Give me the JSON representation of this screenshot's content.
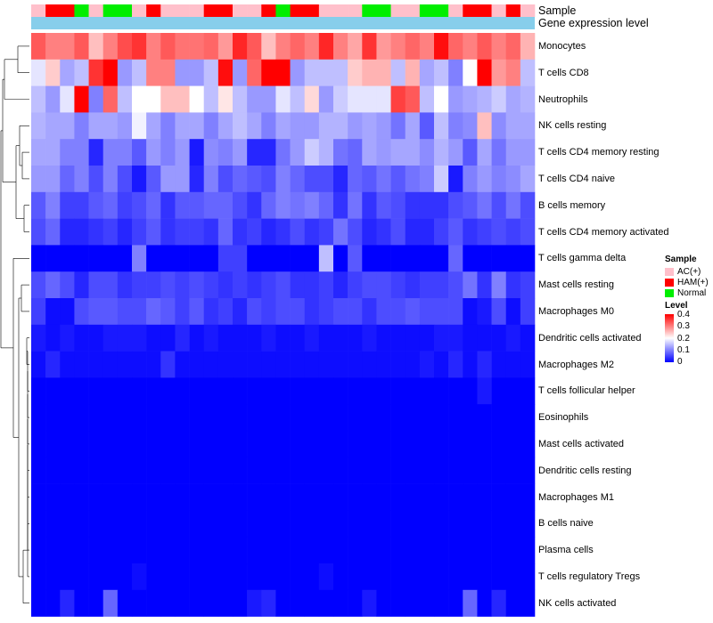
{
  "chart_data": {
    "type": "heatmap",
    "title": "",
    "annotation_tracks": [
      {
        "name": "Sample",
        "label": "Sample"
      },
      {
        "name": "Gene expression level",
        "label": "Gene expression level",
        "color": "#87ceeb"
      }
    ],
    "sample_groups": [
      "AC(+)",
      "HAM(+)",
      "HAM(+)",
      "Normal",
      "AC(+)",
      "Normal",
      "Normal",
      "AC(+)",
      "HAM(+)",
      "AC(+)",
      "AC(+)",
      "AC(+)",
      "HAM(+)",
      "HAM(+)",
      "AC(+)",
      "AC(+)",
      "HAM(+)",
      "Normal",
      "HAM(+)",
      "HAM(+)",
      "AC(+)",
      "AC(+)",
      "AC(+)",
      "Normal",
      "Normal",
      "AC(+)",
      "AC(+)",
      "Normal",
      "Normal",
      "AC(+)",
      "HAM(+)",
      "HAM(+)",
      "AC(+)",
      "HAM(+)",
      "AC(+)"
    ],
    "rows": [
      "Monocytes",
      "T cells CD8",
      "Neutrophils",
      "NK cells resting",
      "T cells CD4 memory resting",
      "T cells CD4 naive",
      "B cells memory",
      "T cells CD4 memory activated",
      "T cells gamma delta",
      "Mast cells resting",
      "Macrophages M0",
      "Dendritic cells activated",
      "Macrophages M2",
      "T cells follicular helper",
      "Eosinophils",
      "Mast cells activated",
      "Dendritic cells resting",
      "Macrophages M1",
      "B cells naive",
      "Plasma cells",
      "T cells regulatory  Tregs",
      "NK cells activated"
    ],
    "values": [
      [
        0.33,
        0.3,
        0.3,
        0.33,
        0.25,
        0.3,
        0.34,
        0.36,
        0.3,
        0.33,
        0.31,
        0.31,
        0.32,
        0.28,
        0.37,
        0.33,
        0.25,
        0.3,
        0.32,
        0.3,
        0.37,
        0.3,
        0.27,
        0.36,
        0.28,
        0.3,
        0.32,
        0.3,
        0.39,
        0.32,
        0.3,
        0.33,
        0.3,
        0.32,
        0.26
      ],
      [
        0.18,
        0.24,
        0.13,
        0.15,
        0.36,
        0.4,
        0.12,
        0.15,
        0.3,
        0.3,
        0.12,
        0.12,
        0.15,
        0.39,
        0.12,
        0.32,
        0.44,
        0.44,
        0.12,
        0.15,
        0.15,
        0.15,
        0.24,
        0.26,
        0.26,
        0.15,
        0.26,
        0.13,
        0.15,
        0.1,
        0.2,
        0.4,
        0.28,
        0.3,
        0.15
      ],
      [
        0.15,
        0.12,
        0.18,
        0.4,
        0.1,
        0.32,
        0.15,
        0.2,
        0.2,
        0.25,
        0.25,
        0.2,
        0.15,
        0.22,
        0.15,
        0.12,
        0.12,
        0.18,
        0.15,
        0.23,
        0.12,
        0.16,
        0.18,
        0.18,
        0.18,
        0.35,
        0.33,
        0.15,
        0.2,
        0.12,
        0.13,
        0.14,
        0.16,
        0.13,
        0.14
      ],
      [
        0.14,
        0.13,
        0.13,
        0.1,
        0.13,
        0.13,
        0.12,
        0.19,
        0.13,
        0.1,
        0.13,
        0.13,
        0.1,
        0.13,
        0.15,
        0.13,
        0.1,
        0.13,
        0.12,
        0.12,
        0.14,
        0.14,
        0.12,
        0.13,
        0.12,
        0.09,
        0.13,
        0.07,
        0.15,
        0.1,
        0.11,
        0.25,
        0.11,
        0.13,
        0.13
      ],
      [
        0.13,
        0.13,
        0.1,
        0.1,
        0.03,
        0.1,
        0.1,
        0.07,
        0.12,
        0.1,
        0.12,
        0.02,
        0.11,
        0.1,
        0.12,
        0.03,
        0.03,
        0.09,
        0.12,
        0.16,
        0.14,
        0.09,
        0.08,
        0.13,
        0.12,
        0.13,
        0.13,
        0.11,
        0.14,
        0.12,
        0.07,
        0.13,
        0.09,
        0.12,
        0.12
      ],
      [
        0.12,
        0.12,
        0.08,
        0.1,
        0.06,
        0.1,
        0.06,
        0.02,
        0.07,
        0.12,
        0.12,
        0.03,
        0.1,
        0.06,
        0.08,
        0.07,
        0.06,
        0.1,
        0.08,
        0.06,
        0.06,
        0.03,
        0.08,
        0.07,
        0.09,
        0.07,
        0.09,
        0.1,
        0.16,
        0.02,
        0.1,
        0.12,
        0.1,
        0.11,
        0.13
      ],
      [
        0.07,
        0.1,
        0.05,
        0.05,
        0.07,
        0.08,
        0.05,
        0.06,
        0.08,
        0.04,
        0.07,
        0.07,
        0.08,
        0.08,
        0.06,
        0.04,
        0.08,
        0.1,
        0.09,
        0.1,
        0.08,
        0.04,
        0.09,
        0.04,
        0.07,
        0.06,
        0.04,
        0.04,
        0.04,
        0.06,
        0.07,
        0.09,
        0.06,
        0.09,
        0.06
      ],
      [
        0.06,
        0.08,
        0.03,
        0.03,
        0.04,
        0.05,
        0.03,
        0.05,
        0.07,
        0.04,
        0.05,
        0.05,
        0.04,
        0.08,
        0.04,
        0.05,
        0.03,
        0.04,
        0.06,
        0.04,
        0.05,
        0.09,
        0.06,
        0.03,
        0.04,
        0.06,
        0.03,
        0.03,
        0.05,
        0.07,
        0.04,
        0.05,
        0.06,
        0.05,
        0.06
      ],
      [
        0.0,
        0.0,
        0.0,
        0.0,
        0.0,
        0.0,
        0.0,
        0.1,
        0.0,
        0.0,
        0.0,
        0.0,
        0.0,
        0.05,
        0.05,
        0.0,
        0.0,
        0.0,
        0.0,
        0.0,
        0.15,
        0.0,
        0.07,
        0.0,
        0.0,
        0.0,
        0.0,
        0.0,
        0.0,
        0.08,
        0.0,
        0.0,
        0.0,
        0.0,
        0.0
      ],
      [
        0.06,
        0.08,
        0.06,
        0.03,
        0.06,
        0.06,
        0.04,
        0.05,
        0.05,
        0.06,
        0.05,
        0.06,
        0.05,
        0.04,
        0.05,
        0.04,
        0.05,
        0.06,
        0.04,
        0.04,
        0.05,
        0.03,
        0.05,
        0.06,
        0.06,
        0.05,
        0.04,
        0.05,
        0.05,
        0.06,
        0.09,
        0.04,
        0.1,
        0.04,
        0.05
      ],
      [
        0.05,
        0.01,
        0.01,
        0.06,
        0.07,
        0.07,
        0.06,
        0.06,
        0.08,
        0.07,
        0.05,
        0.07,
        0.04,
        0.05,
        0.03,
        0.06,
        0.05,
        0.06,
        0.06,
        0.04,
        0.05,
        0.06,
        0.06,
        0.04,
        0.06,
        0.06,
        0.07,
        0.06,
        0.06,
        0.06,
        0.01,
        0.02,
        0.06,
        0.01,
        0.05
      ],
      [
        0.02,
        0.01,
        0.02,
        0.01,
        0.01,
        0.02,
        0.02,
        0.02,
        0.01,
        0.01,
        0.03,
        0.01,
        0.02,
        0.01,
        0.01,
        0.01,
        0.02,
        0.01,
        0.01,
        0.02,
        0.01,
        0.01,
        0.01,
        0.02,
        0.01,
        0.01,
        0.01,
        0.01,
        0.02,
        0.02,
        0.01,
        0.01,
        0.01,
        0.02,
        0.01
      ],
      [
        0.01,
        0.03,
        0.01,
        0.01,
        0.01,
        0.01,
        0.01,
        0.01,
        0.01,
        0.04,
        0.01,
        0.01,
        0.01,
        0.01,
        0.01,
        0.01,
        0.01,
        0.01,
        0.01,
        0.01,
        0.01,
        0.01,
        0.01,
        0.01,
        0.01,
        0.01,
        0.01,
        0.02,
        0.01,
        0.03,
        0.01,
        0.03,
        0.01,
        0.01,
        0.01
      ],
      [
        0.0,
        0.0,
        0.0,
        0.0,
        0.0,
        0.0,
        0.0,
        0.0,
        0.0,
        0.0,
        0.0,
        0.0,
        0.0,
        0.0,
        0.0,
        0.0,
        0.0,
        0.0,
        0.0,
        0.0,
        0.0,
        0.0,
        0.0,
        0.0,
        0.0,
        0.0,
        0.0,
        0.0,
        0.0,
        0.0,
        0.0,
        0.02,
        0.0,
        0.0,
        0.0
      ],
      [
        0.0,
        0.0,
        0.0,
        0.0,
        0.0,
        0.0,
        0.0,
        0.0,
        0.0,
        0.0,
        0.0,
        0.0,
        0.0,
        0.0,
        0.0,
        0.0,
        0.0,
        0.0,
        0.0,
        0.0,
        0.0,
        0.0,
        0.0,
        0.0,
        0.0,
        0.0,
        0.0,
        0.0,
        0.0,
        0.0,
        0.0,
        0.0,
        0.0,
        0.0,
        0.0
      ],
      [
        0.0,
        0.0,
        0.0,
        0.0,
        0.0,
        0.0,
        0.0,
        0.0,
        0.0,
        0.0,
        0.0,
        0.0,
        0.0,
        0.0,
        0.0,
        0.0,
        0.0,
        0.0,
        0.0,
        0.0,
        0.0,
        0.0,
        0.0,
        0.0,
        0.0,
        0.0,
        0.0,
        0.0,
        0.0,
        0.0,
        0.0,
        0.0,
        0.0,
        0.0,
        0.0
      ],
      [
        0.0,
        0.0,
        0.0,
        0.0,
        0.0,
        0.0,
        0.0,
        0.0,
        0.0,
        0.0,
        0.0,
        0.0,
        0.0,
        0.0,
        0.0,
        0.0,
        0.0,
        0.0,
        0.0,
        0.0,
        0.0,
        0.0,
        0.0,
        0.0,
        0.0,
        0.0,
        0.0,
        0.0,
        0.0,
        0.0,
        0.0,
        0.0,
        0.0,
        0.0,
        0.0
      ],
      [
        0.0,
        0.0,
        0.0,
        0.0,
        0.0,
        0.0,
        0.0,
        0.0,
        0.0,
        0.0,
        0.0,
        0.0,
        0.0,
        0.0,
        0.0,
        0.0,
        0.0,
        0.0,
        0.0,
        0.0,
        0.0,
        0.0,
        0.0,
        0.0,
        0.0,
        0.0,
        0.0,
        0.0,
        0.0,
        0.0,
        0.0,
        0.0,
        0.0,
        0.0,
        0.0
      ],
      [
        0.0,
        0.0,
        0.0,
        0.0,
        0.0,
        0.0,
        0.0,
        0.0,
        0.0,
        0.0,
        0.0,
        0.0,
        0.0,
        0.0,
        0.0,
        0.0,
        0.0,
        0.0,
        0.0,
        0.0,
        0.0,
        0.0,
        0.0,
        0.0,
        0.0,
        0.0,
        0.0,
        0.0,
        0.0,
        0.0,
        0.0,
        0.0,
        0.0,
        0.0,
        0.0
      ],
      [
        0.0,
        0.0,
        0.0,
        0.0,
        0.0,
        0.0,
        0.0,
        0.0,
        0.0,
        0.0,
        0.0,
        0.0,
        0.0,
        0.0,
        0.0,
        0.0,
        0.0,
        0.0,
        0.0,
        0.0,
        0.0,
        0.0,
        0.0,
        0.0,
        0.0,
        0.0,
        0.0,
        0.0,
        0.0,
        0.0,
        0.0,
        0.0,
        0.0,
        0.0,
        0.0
      ],
      [
        0.0,
        0.0,
        0.0,
        0.0,
        0.0,
        0.0,
        0.0,
        0.01,
        0.0,
        0.0,
        0.0,
        0.0,
        0.0,
        0.0,
        0.0,
        0.0,
        0.0,
        0.0,
        0.0,
        0.0,
        0.01,
        0.0,
        0.0,
        0.0,
        0.0,
        0.0,
        0.0,
        0.0,
        0.0,
        0.0,
        0.0,
        0.0,
        0.0,
        0.0,
        0.0
      ],
      [
        0.0,
        0.0,
        0.03,
        0.0,
        0.0,
        0.08,
        0.0,
        0.0,
        0.0,
        0.0,
        0.0,
        0.0,
        0.0,
        0.0,
        0.0,
        0.02,
        0.03,
        0.0,
        0.0,
        0.0,
        0.0,
        0.0,
        0.0,
        0.02,
        0.0,
        0.0,
        0.0,
        0.0,
        0.0,
        0.0,
        0.08,
        0.0,
        0.03,
        0.0,
        0.0
      ]
    ],
    "legend": {
      "sample_title": "Sample",
      "sample_groups": [
        {
          "label": "AC(+)",
          "color": "#ffc0cb"
        },
        {
          "label": "HAM(+)",
          "color": "#ff0000"
        },
        {
          "label": "Normal",
          "color": "#00ee00"
        }
      ],
      "level_title": "Level",
      "level_range": [
        0,
        0.4
      ],
      "level_ticks": [
        "0.4",
        "0.3",
        "0.2",
        "0.1",
        "0"
      ],
      "level_colors": [
        "#0000ff",
        "#ffffff",
        "#ff0000"
      ]
    }
  }
}
